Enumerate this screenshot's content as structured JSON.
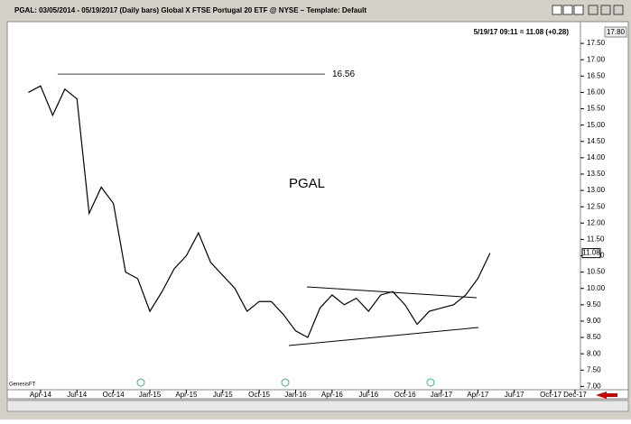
{
  "chart_data": {
    "type": "line",
    "title": "PGAL:  03/05/2014 - 05/19/2017  (Daily bars)   Global X FTSE Portugal 20 ETF @ NYSE  –  Template: Default",
    "status": "5/19/17 09:11 = 11.08 (+0.28)",
    "symbol_label": "PGAL",
    "watermark": "GenesisFT",
    "top_label": "17.80",
    "last_label": "11.08",
    "level": {
      "value": 16.56,
      "label": "16.56"
    },
    "color": "#000000",
    "x": [
      "2014-03",
      "2014-04",
      "2014-05",
      "2014-06",
      "2014-07",
      "2014-08",
      "2014-09",
      "2014-10",
      "2014-11",
      "2014-12",
      "2015-01",
      "2015-02",
      "2015-03",
      "2015-04",
      "2015-05",
      "2015-06",
      "2015-07",
      "2015-08",
      "2015-09",
      "2015-10",
      "2015-11",
      "2015-12",
      "2016-01",
      "2016-02",
      "2016-03",
      "2016-04",
      "2016-05",
      "2016-06",
      "2016-07",
      "2016-08",
      "2016-09",
      "2016-10",
      "2016-11",
      "2016-12",
      "2017-01",
      "2017-02",
      "2017-03",
      "2017-04",
      "2017-05"
    ],
    "values": [
      16.0,
      16.2,
      15.3,
      16.1,
      15.8,
      12.3,
      13.1,
      12.6,
      10.5,
      10.3,
      9.3,
      9.9,
      10.6,
      11.0,
      11.7,
      10.8,
      10.4,
      10.0,
      9.3,
      9.6,
      9.6,
      9.2,
      8.7,
      8.5,
      9.4,
      9.8,
      9.5,
      9.7,
      9.3,
      9.8,
      9.9,
      9.5,
      8.9,
      9.3,
      9.4,
      9.5,
      9.8,
      10.3,
      11.08
    ],
    "xlim": [
      "2014-02",
      "2017-12"
    ],
    "xticks": [
      {
        "value": "2014-04",
        "label": "Apr-14"
      },
      {
        "value": "2014-07",
        "label": "Jul-14"
      },
      {
        "value": "2014-10",
        "label": "Oct-14"
      },
      {
        "value": "2015-01",
        "label": "Jan-15"
      },
      {
        "value": "2015-04",
        "label": "Apr-15"
      },
      {
        "value": "2015-07",
        "label": "Jul-15"
      },
      {
        "value": "2015-10",
        "label": "Oct-15"
      },
      {
        "value": "2016-01",
        "label": "Jan-16"
      },
      {
        "value": "2016-04",
        "label": "Apr-16"
      },
      {
        "value": "2016-07",
        "label": "Jul-16"
      },
      {
        "value": "2016-10",
        "label": "Oct-16"
      },
      {
        "value": "2017-01",
        "label": "Jan-17"
      },
      {
        "value": "2017-04",
        "label": "Apr-17"
      },
      {
        "value": "2017-07",
        "label": "Jul-17"
      },
      {
        "value": "2017-10",
        "label": "Oct-17"
      },
      {
        "value": "2017-12",
        "label": "Dec-17"
      }
    ],
    "ylim": [
      6.9,
      18.0
    ],
    "yticks": [
      {
        "value": 7,
        "label": "7.00"
      },
      {
        "value": 7.5,
        "label": "7.50"
      },
      {
        "value": 8,
        "label": "8.00"
      },
      {
        "value": 8.5,
        "label": "8.50"
      },
      {
        "value": 9,
        "label": "9.00"
      },
      {
        "value": 9.5,
        "label": "9.50"
      },
      {
        "value": 10,
        "label": "10.00"
      },
      {
        "value": 10.5,
        "label": "10.50"
      },
      {
        "value": 11,
        "label": "11.00"
      },
      {
        "value": 11.5,
        "label": "11.50"
      },
      {
        "value": 12,
        "label": "12.00"
      },
      {
        "value": 12.5,
        "label": "12.50"
      },
      {
        "value": 13,
        "label": "13.00"
      },
      {
        "value": 13.5,
        "label": "13.50"
      },
      {
        "value": 14,
        "label": "14.00"
      },
      {
        "value": 14.5,
        "label": "14.50"
      },
      {
        "value": 15,
        "label": "15.00"
      },
      {
        "value": 15.5,
        "label": "15.50"
      },
      {
        "value": 16,
        "label": "16.00"
      },
      {
        "value": 16.5,
        "label": "16.50"
      },
      {
        "value": 17,
        "label": "17.00"
      },
      {
        "value": 17.5,
        "label": "17.50"
      }
    ]
  }
}
